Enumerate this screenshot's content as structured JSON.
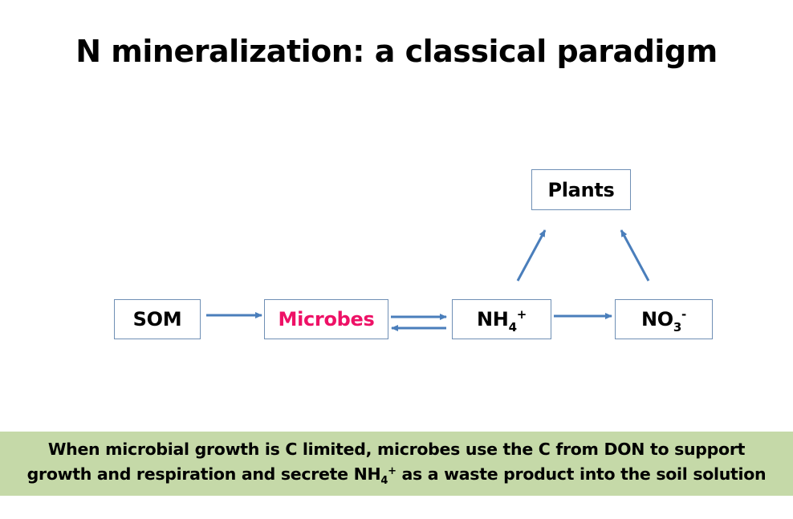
{
  "title": "N mineralization: a classical paradigm",
  "nodes": {
    "som": {
      "label": "SOM"
    },
    "microbes": {
      "label": "Microbes",
      "color": "#ee1166"
    },
    "nh4": {
      "base": "NH",
      "sub": "4",
      "sup": "+"
    },
    "no3": {
      "base": "NO",
      "sub": "3",
      "sup": "-"
    },
    "plants": {
      "label": "Plants"
    }
  },
  "colors": {
    "arrow": "#4a7ebb",
    "box_border": "#6f8fb5",
    "note_background": "#c5d9a8"
  },
  "edges": [
    {
      "from": "SOM",
      "to": "Microbes"
    },
    {
      "from": "Microbes",
      "to": "NH4+"
    },
    {
      "from": "NH4+",
      "to": "Microbes"
    },
    {
      "from": "NH4+",
      "to": "NO3-"
    },
    {
      "from": "NH4+",
      "to": "Plants"
    },
    {
      "from": "NO3-",
      "to": "Plants"
    }
  ],
  "note": {
    "line1": "When microbial growth is C limited, microbes use the C from DON to support",
    "line2_before": "growth and respiration and secrete NH",
    "line2_sub": "4",
    "line2_sup": "+",
    "line2_after": " as a waste product into the soil solution"
  }
}
